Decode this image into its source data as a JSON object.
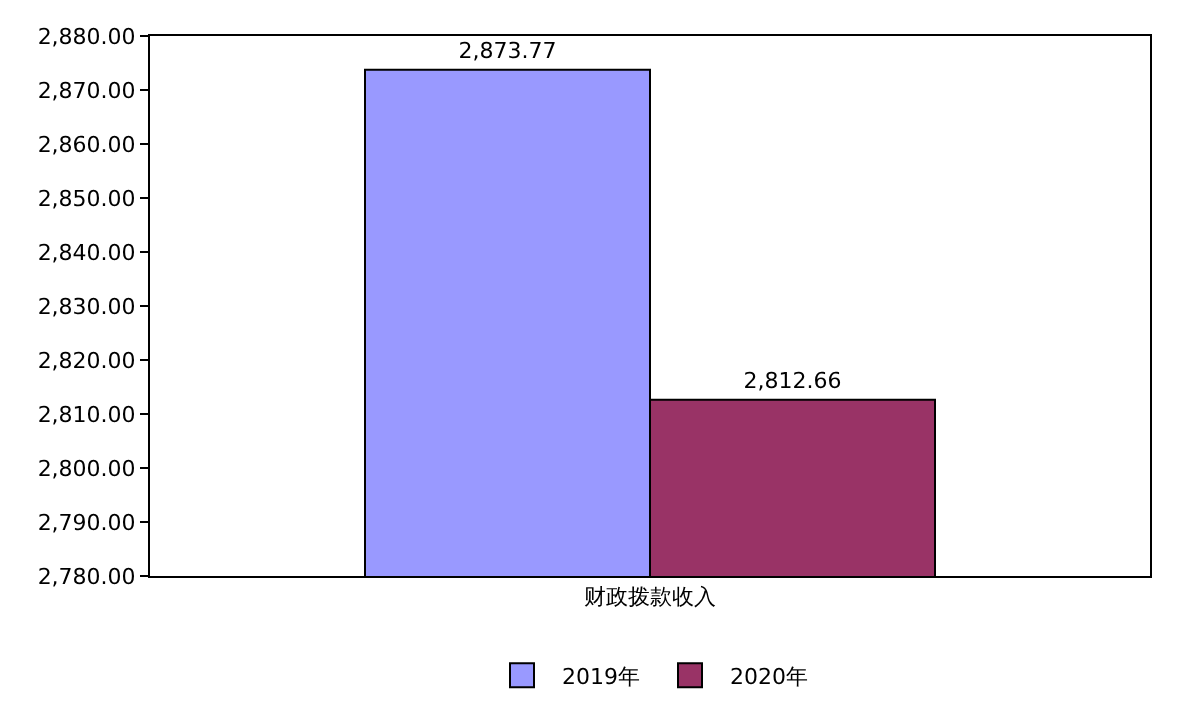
{
  "chart_data": {
    "type": "bar",
    "categories": [
      "财政拨款收入"
    ],
    "series": [
      {
        "name": "2019年",
        "color": "#9999ff",
        "values": [
          2873.77
        ],
        "value_labels": [
          "2,873.77"
        ]
      },
      {
        "name": "2020年",
        "color": "#993366",
        "values": [
          2812.66
        ],
        "value_labels": [
          "2,812.66"
        ]
      }
    ],
    "ylim": [
      2780,
      2880
    ],
    "yticks": [
      {
        "value": 2780,
        "label": "2,780.00"
      },
      {
        "value": 2790,
        "label": "2,790.00"
      },
      {
        "value": 2800,
        "label": "2,800.00"
      },
      {
        "value": 2810,
        "label": "2,810.00"
      },
      {
        "value": 2820,
        "label": "2,820.00"
      },
      {
        "value": 2830,
        "label": "2,830.00"
      },
      {
        "value": 2840,
        "label": "2,840.00"
      },
      {
        "value": 2850,
        "label": "2,850.00"
      },
      {
        "value": 2860,
        "label": "2,860.00"
      },
      {
        "value": 2870,
        "label": "2,870.00"
      },
      {
        "value": 2880,
        "label": "2,880.00"
      }
    ],
    "grid": false,
    "legend": "bottom"
  }
}
